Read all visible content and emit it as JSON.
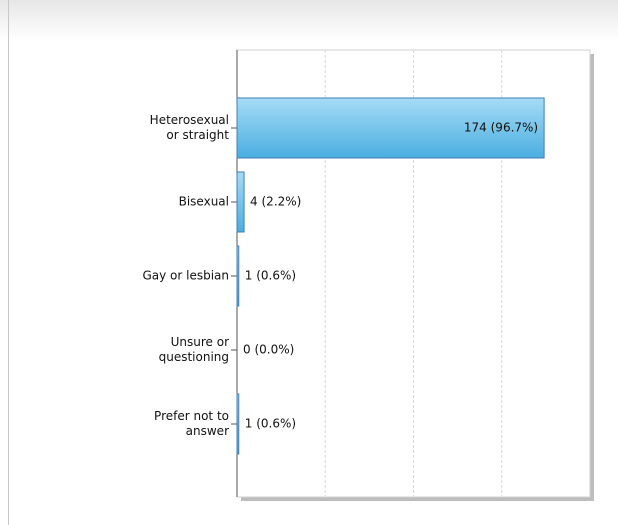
{
  "chart_data": {
    "type": "bar",
    "orientation": "horizontal",
    "categories": [
      "Heterosexual or straight",
      "Bisexual",
      "Gay or lesbian",
      "Unsure or questioning",
      "Prefer not to answer"
    ],
    "values": [
      174,
      4,
      1,
      0,
      1
    ],
    "value_labels": [
      "174 (96.7%)",
      "4 (2.2%)",
      "1 (0.6%)",
      "0 (0.0%)",
      "1 (0.6%)"
    ],
    "color": "#6cc3ec",
    "xlim": [
      0,
      200
    ],
    "xticks": [
      0,
      50,
      100,
      150,
      200
    ],
    "grid": true
  }
}
